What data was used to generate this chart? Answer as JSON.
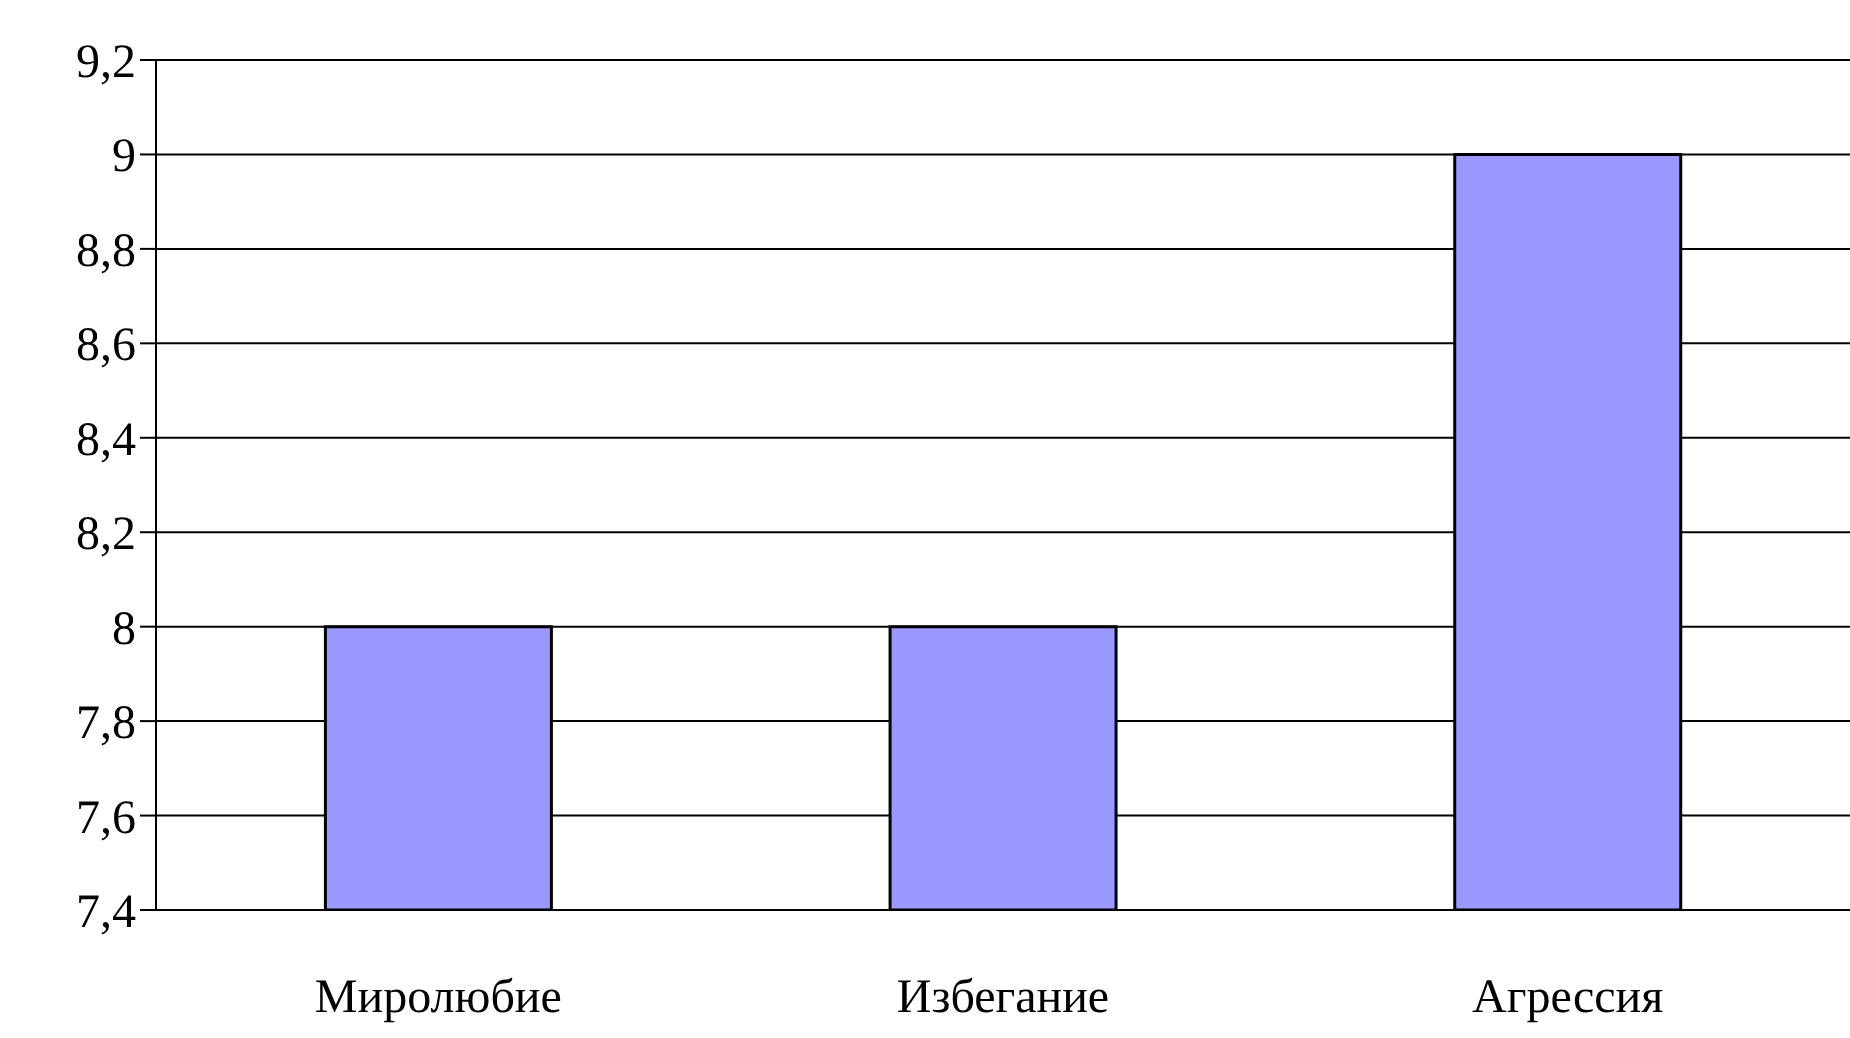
{
  "chart_data": {
    "type": "bar",
    "categories": [
      "Миролюбие",
      "Избегание",
      "Агрессия"
    ],
    "values": [
      8,
      8,
      9
    ],
    "color": "#9999ff",
    "ylim": [
      7.4,
      9.2
    ],
    "yticks": [
      {
        "value": 7.4,
        "label": "7,4"
      },
      {
        "value": 7.6,
        "label": "7,6"
      },
      {
        "value": 7.8,
        "label": "7,8"
      },
      8,
      {
        "value": 8.2,
        "label": "8,2"
      },
      {
        "value": 8.4,
        "label": "8,4"
      },
      {
        "value": 8.6,
        "label": "8,6"
      },
      {
        "value": 8.8,
        "label": "8,8"
      },
      9,
      {
        "value": 9.2,
        "label": "9,2"
      }
    ],
    "grid": "y"
  }
}
